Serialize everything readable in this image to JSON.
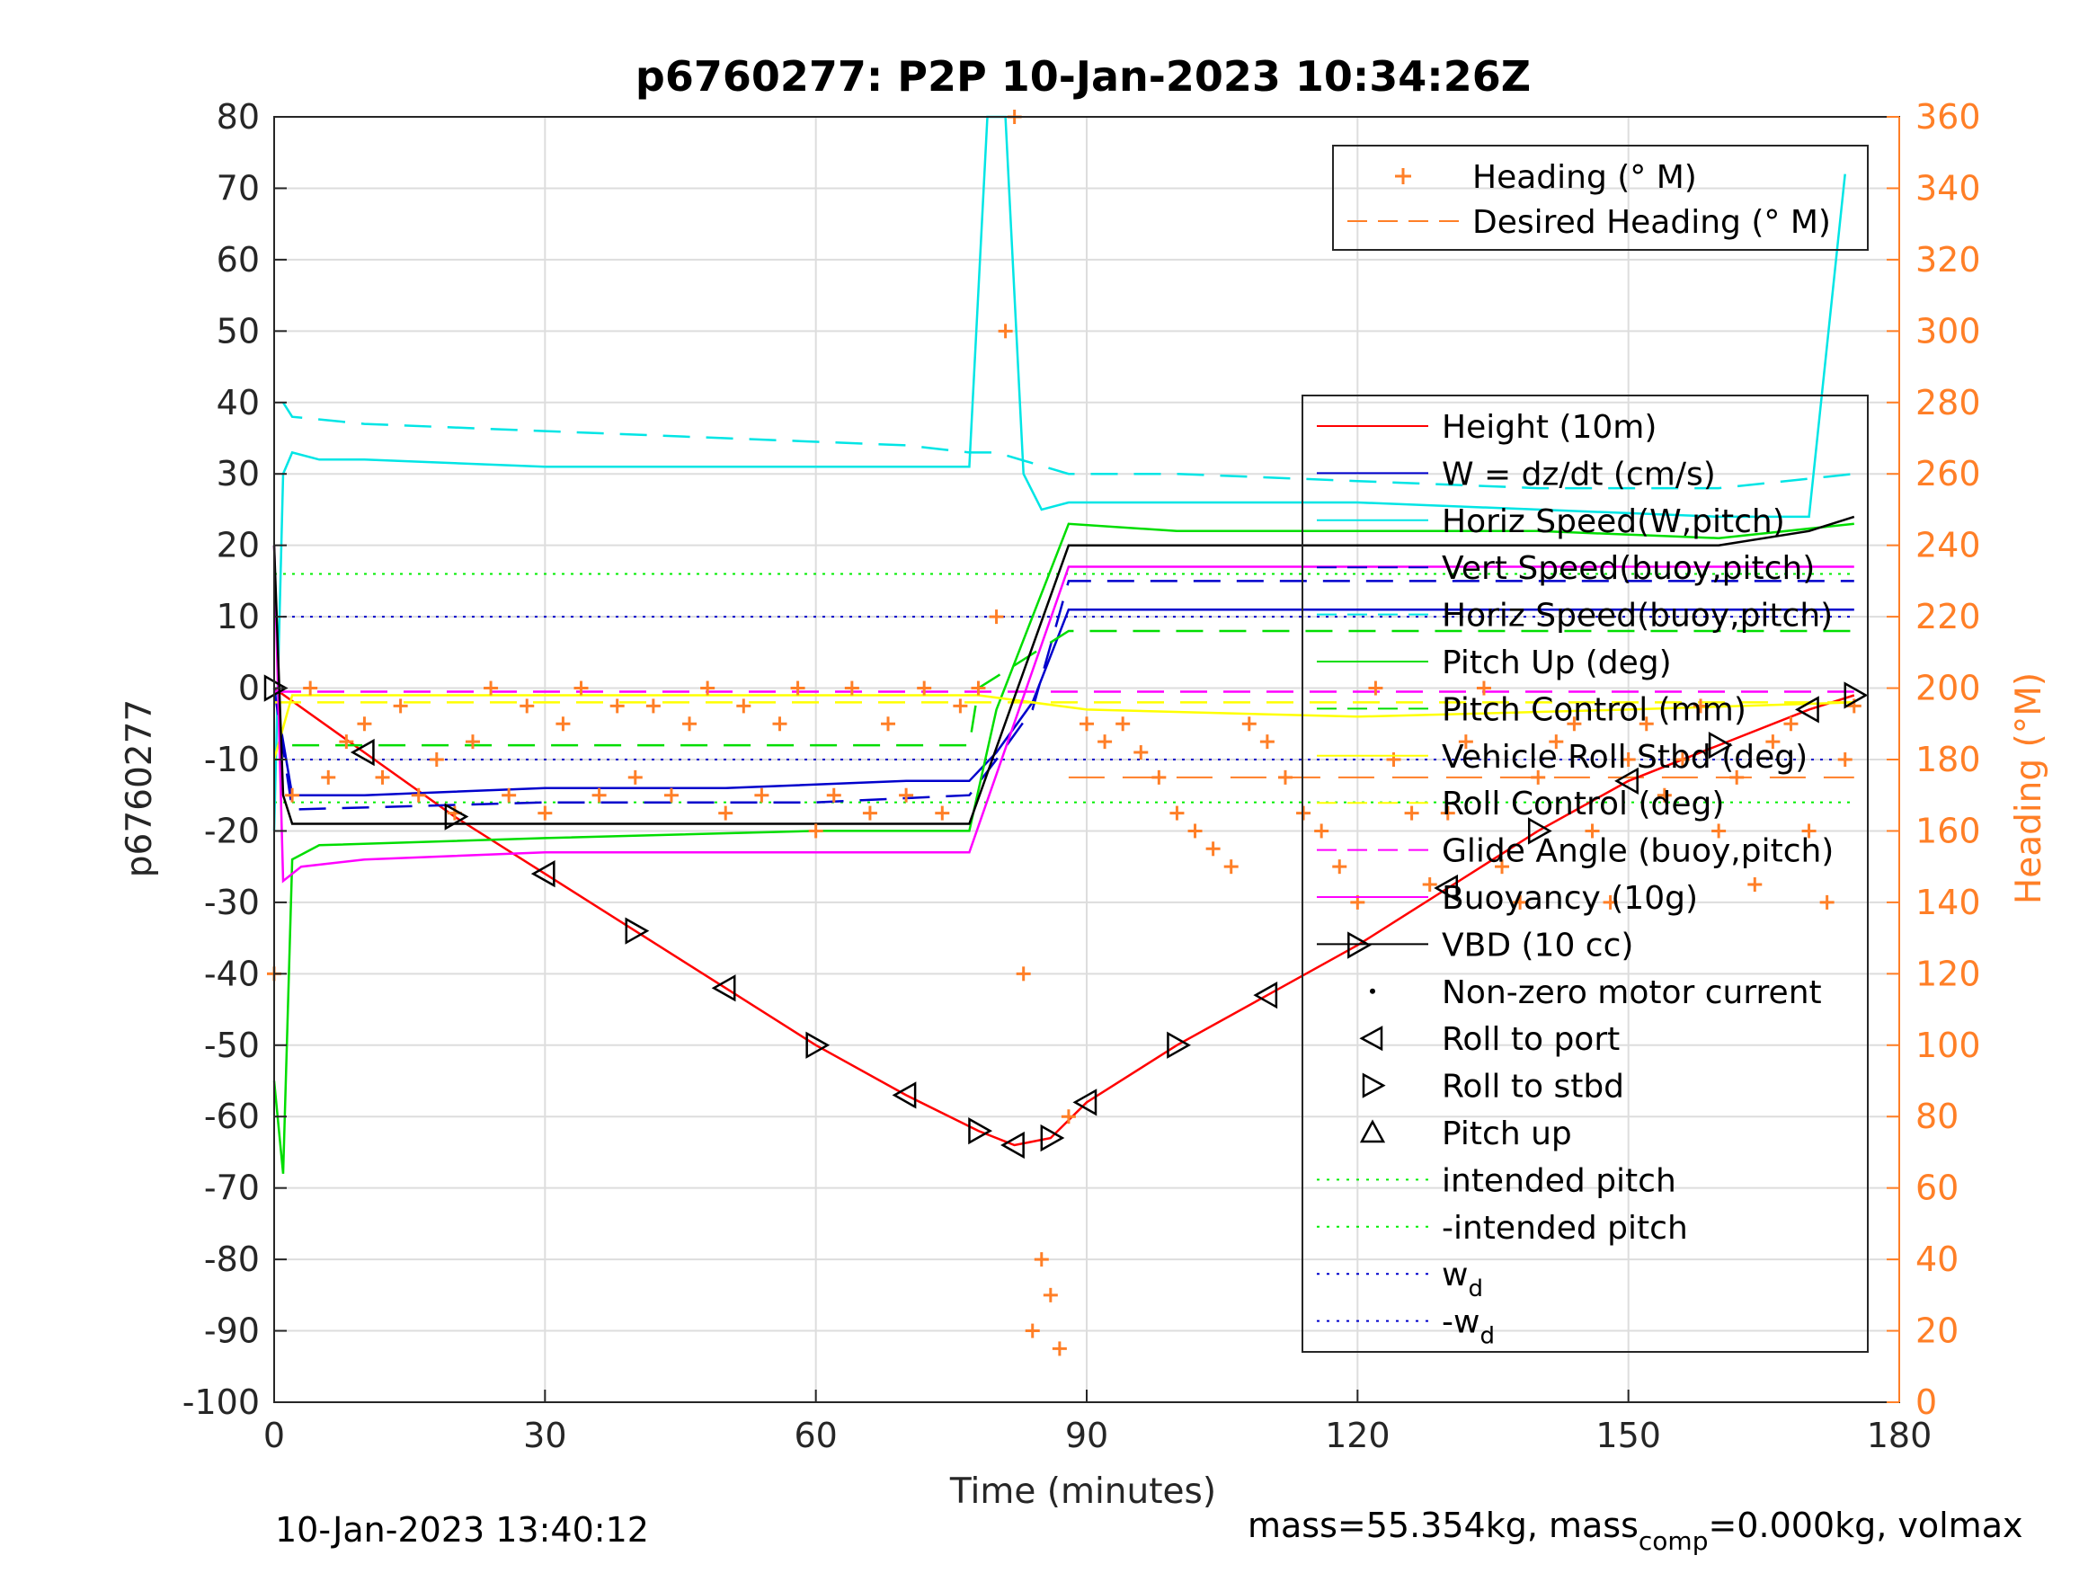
{
  "chart_data": {
    "type": "line",
    "title": "p6760277: P2P 10-Jan-2023 10:34:26Z",
    "xlabel": "Time (minutes)",
    "ylabel": "p6760277",
    "y2label": "Heading (°M)",
    "xlim": [
      0,
      180
    ],
    "ylim": [
      -100,
      80
    ],
    "y2lim": [
      0,
      360
    ],
    "xticks": [
      "0",
      "30",
      "60",
      "90",
      "120",
      "150",
      "180"
    ],
    "yticks": [
      "80",
      "70",
      "60",
      "50",
      "40",
      "30",
      "20",
      "10",
      "0",
      "-10",
      "-20",
      "-30",
      "-40",
      "-50",
      "-60",
      "-70",
      "-80",
      "-90",
      "-100"
    ],
    "y2ticks": [
      "360",
      "340",
      "320",
      "300",
      "280",
      "260",
      "240",
      "220",
      "200",
      "180",
      "160",
      "140",
      "120",
      "100",
      "80",
      "60",
      "40",
      "20",
      "0"
    ],
    "grid": true,
    "footer_left": "10-Jan-2023 13:40:12",
    "footer_right": {
      "a": "mass=55.354kg, mass",
      "sub": "comp",
      "b": "=0.000kg, volmax"
    },
    "legend_top": [
      {
        "label": "Heading (° M)",
        "color": "#ff7f27",
        "style": "plus"
      },
      {
        "label": "Desired Heading (° M)",
        "color": "#ff7f27",
        "style": "dashed"
      }
    ],
    "legend_main": [
      {
        "label": "Height (10m)",
        "color": "#ff0000",
        "style": "solid"
      },
      {
        "label": "W = dz/dt (cm/s)",
        "color": "#0000cc",
        "style": "solid"
      },
      {
        "label": "Horiz Speed(W,pitch)",
        "color": "#00e5e5",
        "style": "solid"
      },
      {
        "label": "Vert Speed(buoy,pitch)",
        "color": "#0000cc",
        "style": "dashed"
      },
      {
        "label": "Horiz Speed(buoy,pitch)",
        "color": "#00e5e5",
        "style": "dashed"
      },
      {
        "label": "Pitch Up (deg)",
        "color": "#00dd00",
        "style": "solid"
      },
      {
        "label": "Pitch Control (mm)",
        "color": "#00dd00",
        "style": "dashed"
      },
      {
        "label": "Vehicle Roll Stbd (deg)",
        "color": "#ffff00",
        "style": "solid"
      },
      {
        "label": "Roll Control (deg)",
        "color": "#ffff00",
        "style": "dashed"
      },
      {
        "label": "Glide Angle (buoy,pitch)",
        "color": "#ff00ff",
        "style": "dashed"
      },
      {
        "label": "Buoyancy (10g)",
        "color": "#ff00ff",
        "style": "solid"
      },
      {
        "label": "VBD (10 cc)",
        "color": "#000000",
        "style": "solid"
      },
      {
        "label": "Non-zero motor current",
        "color": "#000000",
        "style": "dot"
      },
      {
        "label": "Roll to port",
        "color": "#000000",
        "style": "tri-left"
      },
      {
        "label": "Roll to stbd",
        "color": "#000000",
        "style": "tri-right"
      },
      {
        "label": "Pitch up",
        "color": "#000000",
        "style": "tri-up"
      },
      {
        "label": "intended pitch",
        "color": "#00ee00",
        "style": "dotted"
      },
      {
        "label": "-intended pitch",
        "color": "#00ee00",
        "style": "dotted"
      },
      {
        "label": "w",
        "sub": "d",
        "color": "#0000cc",
        "style": "dotted"
      },
      {
        "label": "-w",
        "sub": "d",
        "color": "#0000cc",
        "style": "dotted"
      }
    ],
    "series": [
      {
        "name": "Height (10m)",
        "x": [
          0,
          10,
          20,
          30,
          40,
          50,
          60,
          70,
          78,
          82,
          86,
          90,
          100,
          110,
          120,
          130,
          140,
          150,
          160,
          170,
          175
        ],
        "y": [
          0,
          -9,
          -18,
          -26,
          -34,
          -42,
          -50,
          -57,
          -62,
          -64,
          -63,
          -58,
          -50,
          -43,
          -36,
          -28,
          -20,
          -13,
          -8,
          -3,
          -1
        ]
      },
      {
        "name": "W = dz/dt (cm/s)",
        "x": [
          0,
          2,
          10,
          30,
          50,
          70,
          77,
          80,
          84,
          88,
          100,
          120,
          140,
          160,
          175
        ],
        "y": [
          0,
          -15,
          -15,
          -14,
          -14,
          -13,
          -13,
          -9,
          -2,
          11,
          11,
          11,
          11,
          11,
          11
        ]
      },
      {
        "name": "Horiz Speed(W,pitch)",
        "x": [
          0,
          1,
          2,
          5,
          10,
          30,
          50,
          70,
          77,
          79,
          81,
          83,
          85,
          88,
          100,
          120,
          140,
          160,
          170,
          174
        ],
        "y": [
          -20,
          30,
          33,
          32,
          32,
          31,
          31,
          31,
          31,
          80,
          80,
          30,
          25,
          26,
          26,
          26,
          25,
          24,
          24,
          72
        ]
      },
      {
        "name": "Vert Speed(buoy,pitch)",
        "x": [
          0,
          2,
          30,
          60,
          77,
          80,
          84,
          88,
          120,
          150,
          175
        ],
        "y": [
          0,
          -17,
          -16,
          -16,
          -15,
          -10,
          -3,
          15,
          15,
          15,
          15
        ]
      },
      {
        "name": "Horiz Speed(buoy,pitch)",
        "x": [
          1,
          2,
          10,
          30,
          50,
          70,
          77,
          80,
          88,
          100,
          120,
          140,
          160,
          175
        ],
        "y": [
          40,
          38,
          37,
          36,
          35,
          34,
          33,
          33,
          30,
          30,
          29,
          28,
          28,
          30
        ]
      },
      {
        "name": "Pitch Up (deg)",
        "x": [
          0,
          1,
          2,
          5,
          30,
          60,
          77,
          80,
          84,
          88,
          100,
          120,
          140,
          160,
          175
        ],
        "y": [
          -55,
          -68,
          -24,
          -22,
          -21,
          -20,
          -20,
          -3,
          10,
          23,
          22,
          22,
          22,
          21,
          23
        ]
      },
      {
        "name": "Pitch Control (mm)",
        "x": [
          2,
          77,
          78,
          88,
          175
        ],
        "y": [
          -8,
          -8,
          0,
          8,
          8
        ]
      },
      {
        "name": "Vehicle Roll Stbd (deg)",
        "x": [
          0,
          2,
          30,
          60,
          78,
          90,
          120,
          150,
          175
        ],
        "y": [
          -10,
          -1,
          -1,
          -1,
          -1,
          -3,
          -4,
          -3,
          -2
        ]
      },
      {
        "name": "Roll Control (deg)",
        "x": [
          0,
          175
        ],
        "y": [
          -2,
          -2
        ]
      },
      {
        "name": "Glide Angle (buoy,pitch)",
        "x": [
          0,
          175
        ],
        "y": [
          -0.5,
          -0.5
        ]
      },
      {
        "name": "Buoyancy (10g)",
        "x": [
          0,
          1,
          3,
          10,
          30,
          60,
          77,
          88,
          100,
          140,
          175
        ],
        "y": [
          20,
          -27,
          -25,
          -24,
          -23,
          -23,
          -23,
          17,
          17,
          17,
          17
        ]
      },
      {
        "name": "VBD (10 cc)",
        "x": [
          0,
          1,
          2,
          77,
          88,
          120,
          160,
          170,
          175
        ],
        "y": [
          20,
          -15,
          -19,
          -19,
          20,
          20,
          20,
          22,
          24
        ]
      }
    ],
    "reference_lines": [
      {
        "name": "intended pitch",
        "y": 16,
        "color": "#00ee00"
      },
      {
        "name": "-intended pitch",
        "y": -16,
        "color": "#00ee00"
      },
      {
        "name": "wd",
        "y": 10,
        "color": "#0000cc"
      },
      {
        "name": "-wd",
        "y": -10,
        "color": "#0000cc"
      }
    ],
    "desired_heading": {
      "y2": 175,
      "x": [
        88,
        175
      ]
    },
    "heading": {
      "x": [
        0,
        2,
        4,
        6,
        8,
        10,
        12,
        14,
        16,
        18,
        20,
        22,
        24,
        26,
        28,
        30,
        32,
        34,
        36,
        38,
        40,
        42,
        44,
        46,
        48,
        50,
        52,
        54,
        56,
        58,
        60,
        62,
        64,
        66,
        68,
        70,
        72,
        74,
        76,
        78,
        80,
        81,
        82,
        83,
        84,
        85,
        86,
        87,
        88,
        90,
        92,
        94,
        96,
        98,
        100,
        102,
        104,
        106,
        108,
        110,
        112,
        114,
        116,
        118,
        120,
        122,
        124,
        126,
        128,
        130,
        132,
        134,
        136,
        138,
        140,
        142,
        144,
        146,
        148,
        150,
        152,
        154,
        156,
        158,
        160,
        162,
        164,
        166,
        168,
        170,
        172,
        174,
        175
      ],
      "y2": [
        120,
        170,
        200,
        175,
        185,
        190,
        175,
        195,
        170,
        180,
        165,
        185,
        200,
        170,
        195,
        165,
        190,
        200,
        170,
        195,
        175,
        195,
        170,
        190,
        200,
        165,
        195,
        170,
        190,
        200,
        160,
        170,
        200,
        165,
        190,
        170,
        200,
        165,
        195,
        200,
        220,
        300,
        360,
        120,
        20,
        40,
        30,
        15,
        80,
        190,
        185,
        190,
        182,
        175,
        165,
        160,
        155,
        150,
        190,
        185,
        175,
        165,
        160,
        150,
        140,
        200,
        180,
        165,
        145,
        165,
        185,
        200,
        150,
        140,
        175,
        185,
        190,
        160,
        140,
        180,
        190,
        170,
        180,
        195,
        160,
        175,
        145,
        185,
        190,
        160,
        140,
        180,
        195
      ]
    }
  }
}
